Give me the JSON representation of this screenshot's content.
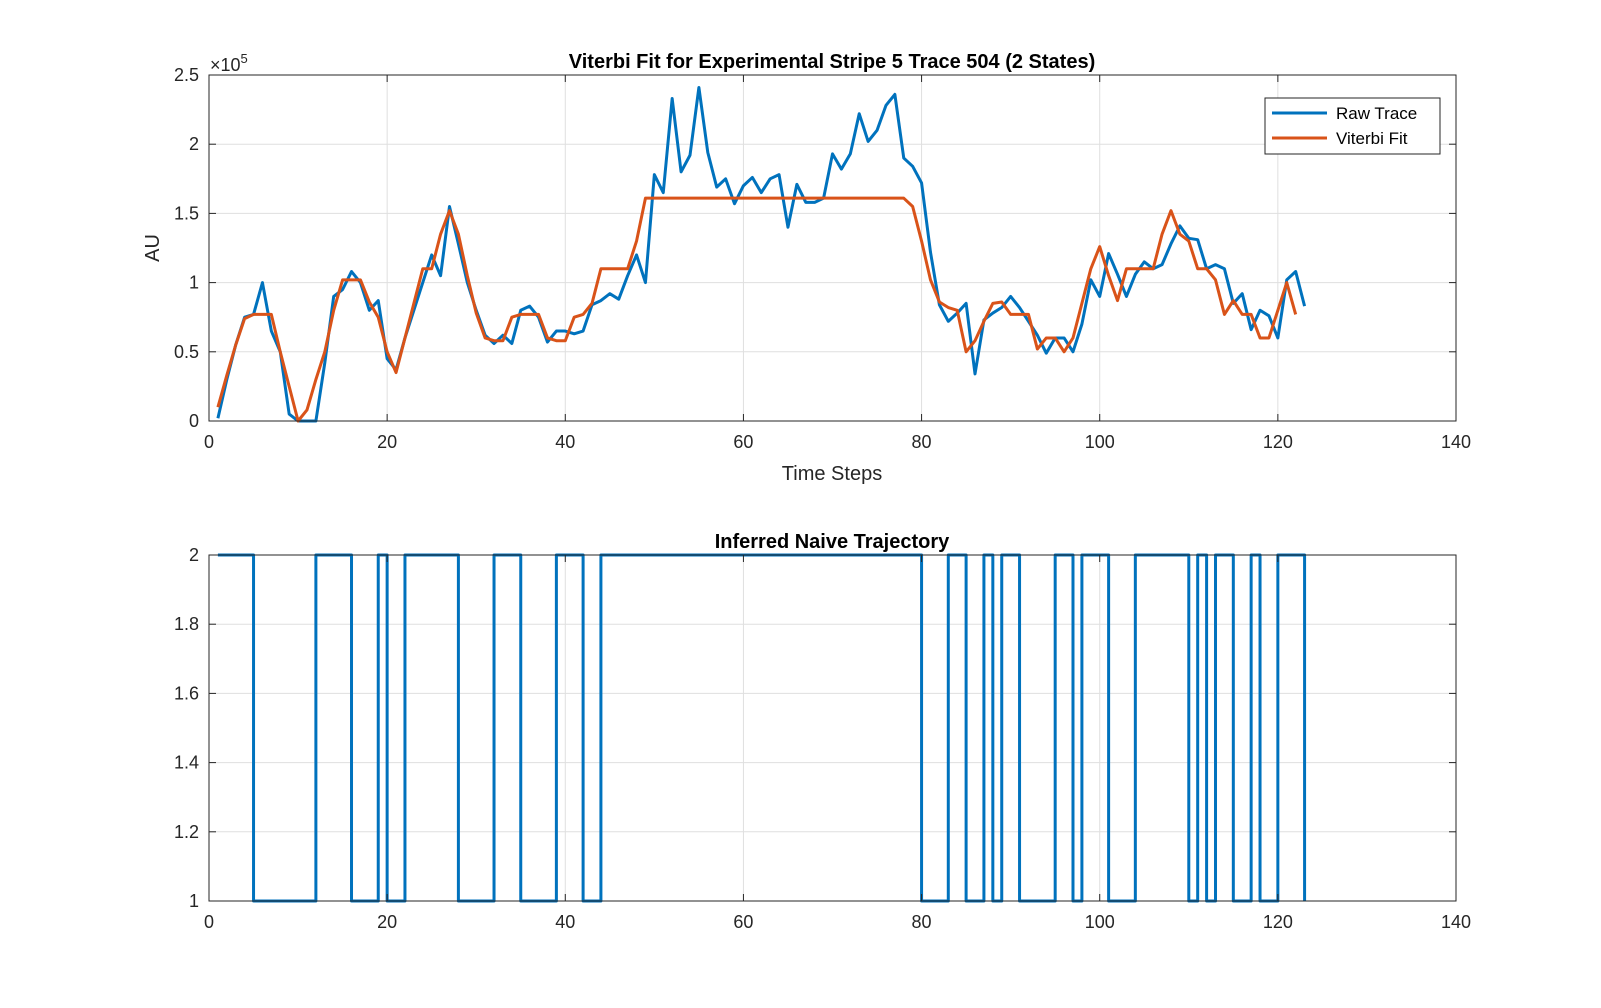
{
  "chart_data": [
    {
      "type": "line",
      "title": "Viterbi Fit for Experimental Stripe 5 Trace 504 (2 States)",
      "xlabel": "Time Steps",
      "ylabel": "AU",
      "y_exponent_label": "×10",
      "y_exponent_power": "5",
      "xlim": [
        0,
        140
      ],
      "ylim": [
        0,
        2.5
      ],
      "xticks": [
        0,
        20,
        40,
        60,
        80,
        100,
        120,
        140
      ],
      "yticks": [
        0,
        0.5,
        1,
        1.5,
        2,
        2.5
      ],
      "ytick_labels": [
        "0",
        "0.5",
        "1",
        "1.5",
        "2",
        "2.5"
      ],
      "grid": true,
      "legend_position": "top-right",
      "series": [
        {
          "name": "Raw Trace",
          "color": "#0072BD",
          "x_start": 1,
          "values": [
            0.02,
            0.3,
            0.55,
            0.75,
            0.77,
            1.0,
            0.65,
            0.5,
            0.05,
            0.0,
            0.0,
            0.0,
            0.42,
            0.9,
            0.95,
            1.08,
            1.0,
            0.8,
            0.87,
            0.45,
            0.37,
            0.6,
            0.8,
            1.0,
            1.2,
            1.05,
            1.55,
            1.28,
            1.0,
            0.8,
            0.62,
            0.56,
            0.62,
            0.56,
            0.8,
            0.83,
            0.75,
            0.57,
            0.65,
            0.65,
            0.63,
            0.65,
            0.84,
            0.87,
            0.92,
            0.88,
            1.05,
            1.2,
            1.0,
            1.78,
            1.65,
            2.33,
            1.8,
            1.92,
            2.41,
            1.94,
            1.69,
            1.75,
            1.57,
            1.7,
            1.76,
            1.65,
            1.75,
            1.78,
            1.4,
            1.71,
            1.58,
            1.58,
            1.61,
            1.93,
            1.82,
            1.93,
            2.22,
            2.02,
            2.1,
            2.28,
            2.36,
            1.9,
            1.84,
            1.72,
            1.22,
            0.84,
            0.72,
            0.78,
            0.85,
            0.34,
            0.73,
            0.78,
            0.82,
            0.9,
            0.82,
            0.72,
            0.62,
            0.49,
            0.6,
            0.6,
            0.5,
            0.7,
            1.02,
            0.9,
            1.21,
            1.06,
            0.9,
            1.06,
            1.15,
            1.1,
            1.13,
            1.28,
            1.41,
            1.32,
            1.31,
            1.1,
            1.13,
            1.1,
            0.85,
            0.92,
            0.66,
            0.8,
            0.76,
            0.6,
            1.02,
            1.08,
            0.83
          ]
        },
        {
          "name": "Viterbi Fit",
          "color": "#D95319",
          "x_start": 1,
          "values": [
            0.1,
            0.33,
            0.55,
            0.74,
            0.77,
            0.77,
            0.77,
            0.5,
            0.25,
            0.0,
            0.08,
            0.3,
            0.5,
            0.8,
            1.02,
            1.02,
            1.02,
            0.86,
            0.75,
            0.5,
            0.35,
            0.6,
            0.85,
            1.1,
            1.1,
            1.35,
            1.52,
            1.35,
            1.05,
            0.78,
            0.6,
            0.58,
            0.58,
            0.75,
            0.77,
            0.77,
            0.77,
            0.6,
            0.58,
            0.58,
            0.75,
            0.77,
            0.85,
            1.1,
            1.1,
            1.1,
            1.1,
            1.3,
            1.61,
            1.61,
            1.61,
            1.61,
            1.61,
            1.61,
            1.61,
            1.61,
            1.61,
            1.61,
            1.61,
            1.61,
            1.61,
            1.61,
            1.61,
            1.61,
            1.61,
            1.61,
            1.61,
            1.61,
            1.61,
            1.61,
            1.61,
            1.61,
            1.61,
            1.61,
            1.61,
            1.61,
            1.61,
            1.61,
            1.55,
            1.3,
            1.02,
            0.86,
            0.82,
            0.8,
            0.5,
            0.58,
            0.72,
            0.85,
            0.86,
            0.77,
            0.77,
            0.77,
            0.52,
            0.6,
            0.6,
            0.5,
            0.6,
            0.85,
            1.1,
            1.26,
            1.05,
            0.87,
            1.1,
            1.1,
            1.1,
            1.1,
            1.35,
            1.52,
            1.35,
            1.3,
            1.1,
            1.1,
            1.02,
            0.77,
            0.87,
            0.77,
            0.77,
            0.6,
            0.6,
            0.8,
            1.0,
            0.77
          ]
        }
      ]
    },
    {
      "type": "line",
      "title": "Inferred Naive Trajectory",
      "xlim": [
        0,
        140
      ],
      "ylim": [
        1,
        2
      ],
      "xticks": [
        0,
        20,
        40,
        60,
        80,
        100,
        120,
        140
      ],
      "yticks": [
        1,
        1.2,
        1.4,
        1.6,
        1.8,
        2
      ],
      "ytick_labels": [
        "1",
        "1.2",
        "1.4",
        "1.6",
        "1.8",
        "2"
      ],
      "grid": true,
      "series": [
        {
          "color": "#0072BD",
          "step": true,
          "x_start": 1,
          "values": [
            2,
            2,
            2,
            2,
            1,
            1,
            1,
            1,
            1,
            1,
            1,
            2,
            2,
            2,
            2,
            1,
            1,
            1,
            2,
            1,
            1,
            2,
            2,
            2,
            2,
            2,
            2,
            1,
            1,
            1,
            1,
            2,
            2,
            2,
            1,
            1,
            1,
            1,
            2,
            2,
            2,
            1,
            1,
            2,
            2,
            2,
            2,
            2,
            2,
            2,
            2,
            2,
            2,
            2,
            2,
            2,
            2,
            2,
            2,
            2,
            2,
            2,
            2,
            2,
            2,
            2,
            2,
            2,
            2,
            2,
            2,
            2,
            2,
            2,
            2,
            2,
            2,
            2,
            2,
            1,
            1,
            1,
            2,
            2,
            1,
            1,
            2,
            1,
            2,
            2,
            1,
            1,
            1,
            1,
            2,
            2,
            1,
            2,
            2,
            2,
            1,
            1,
            1,
            2,
            2,
            2,
            2,
            2,
            2,
            1,
            2,
            1,
            2,
            2,
            1,
            1,
            2,
            1,
            1,
            2,
            2,
            2,
            1
          ]
        }
      ]
    }
  ]
}
